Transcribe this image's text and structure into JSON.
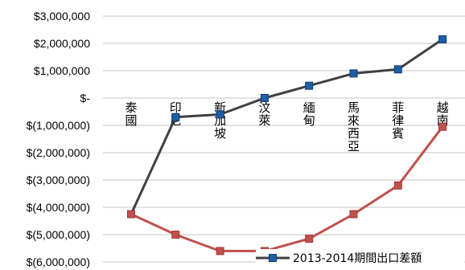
{
  "chart_data": {
    "type": "line",
    "title": "",
    "xlabel": "",
    "ylabel": "",
    "ylim": [
      -6000000,
      3000000
    ],
    "y_ticks": [
      {
        "value": 3000000,
        "label": "$3,000,000"
      },
      {
        "value": 2000000,
        "label": "$2,000,000"
      },
      {
        "value": 1000000,
        "label": "$1,000,000"
      },
      {
        "value": 0,
        "label": "$-"
      },
      {
        "value": -1000000,
        "label": "$(1,000,000)"
      },
      {
        "value": -2000000,
        "label": "$(2,000,000)"
      },
      {
        "value": -3000000,
        "label": "$(3,000,000)"
      },
      {
        "value": -4000000,
        "label": "$(4,000,000)"
      },
      {
        "value": -5000000,
        "label": "$(5,000,000)"
      },
      {
        "value": -6000000,
        "label": "$(6,000,000)"
      }
    ],
    "categories": [
      "泰國",
      "印尼",
      "新加坡",
      "汶萊",
      "緬甸",
      "馬來西亞",
      "菲律賓",
      "越南"
    ],
    "grid": true,
    "legend_position": "bottom-right",
    "series": [
      {
        "name": "2013-2014期間出口差額",
        "color": "#404040",
        "marker_color": "#1f5fa8",
        "marker": "square",
        "values": [
          -4250000,
          -700000,
          -600000,
          0,
          450000,
          900000,
          1050000,
          2150000
        ]
      },
      {
        "name": "",
        "color": "#c0504d",
        "marker_color": "#c0504d",
        "marker": "square",
        "values": [
          -4250000,
          -5000000,
          -5600000,
          -5600000,
          -5150000,
          -4250000,
          -3200000,
          -1050000
        ]
      }
    ]
  }
}
